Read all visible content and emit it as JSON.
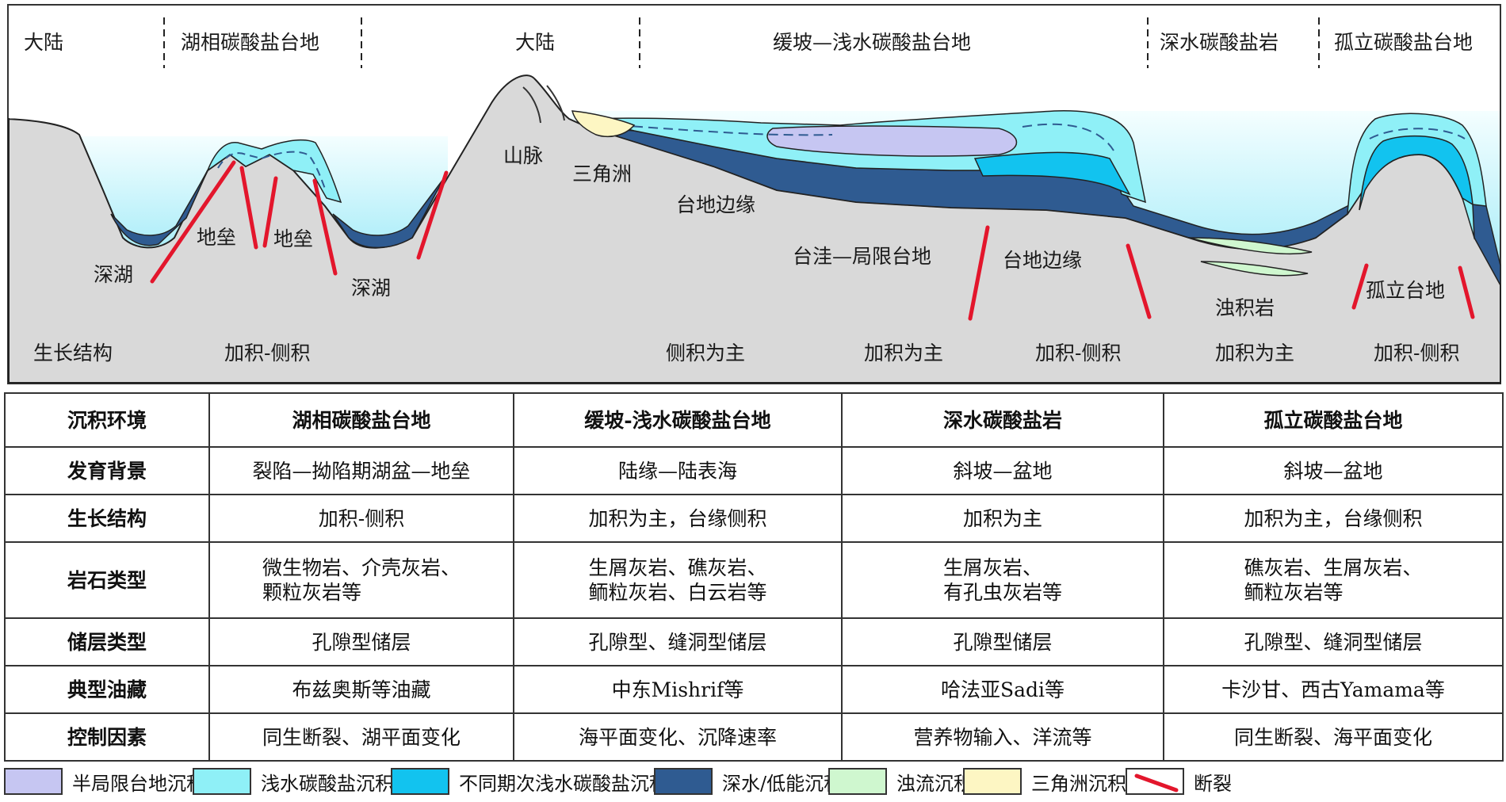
{
  "diagram": {
    "regions": [
      "大陆",
      "湖相碳酸盐台地",
      "大陆",
      "缓坡—浅水碳酸盐台地",
      "深水碳酸盐岩",
      "孤立碳酸盐台地"
    ],
    "labels": {
      "deep_lake_left": "深湖",
      "horst_1": "地垒",
      "horst_2": "地垒",
      "deep_lake_right": "深湖",
      "mountain": "山脉",
      "delta": "三角洲",
      "platform_margin_1": "台地边缘",
      "restricted_platform": "台洼—局限台地",
      "platform_margin_2": "台地边缘",
      "turbidite": "浊积岩",
      "isolated_platform": "孤立台地"
    },
    "growth": {
      "title": "生长结构",
      "items": [
        "加积-侧积",
        "侧积为主",
        "加积为主",
        "加积-侧积",
        "加积为主",
        "加积-侧积"
      ]
    },
    "colors": {
      "land": "#d9d9d9",
      "water_light": "#e8fbff",
      "water_mid": "#9fe9f7",
      "semi_restricted": "#c6c6f2",
      "shallow_carbonate": "#8ff0f7",
      "multi_shallow": "#12c3ef",
      "deep_low_energy": "#2f5b91",
      "turbidite": "#cff7cf",
      "delta": "#fdf6c3",
      "fault": "#e3162c"
    }
  },
  "table": {
    "header": [
      "沉积环境",
      "湖相碳酸盐台地",
      "缓坡-浅水碳酸盐台地",
      "深水碳酸盐岩",
      "孤立碳酸盐台地"
    ],
    "rows": [
      {
        "label": "发育背景",
        "cells": [
          [
            "裂陷—拗陷期湖盆—地垒"
          ],
          [
            "陆缘—陆表海"
          ],
          [
            "斜坡—盆地"
          ],
          [
            "斜坡—盆地"
          ]
        ]
      },
      {
        "label": "生长结构",
        "cells": [
          [
            "加积-侧积"
          ],
          [
            "加积为主，台缘侧积"
          ],
          [
            "加积为主"
          ],
          [
            "加积为主，台缘侧积"
          ]
        ]
      },
      {
        "label": "岩石类型",
        "cells": [
          [
            "微生物岩、介壳灰岩、",
            "颗粒灰岩等"
          ],
          [
            "生屑灰岩、礁灰岩、",
            "鲕粒灰岩、白云岩等"
          ],
          [
            "生屑灰岩、",
            "有孔虫灰岩等"
          ],
          [
            "礁灰岩、生屑灰岩、",
            "鲕粒灰岩等"
          ]
        ]
      },
      {
        "label": "储层类型",
        "cells": [
          [
            "孔隙型储层"
          ],
          [
            "孔隙型、缝洞型储层"
          ],
          [
            "孔隙型储层"
          ],
          [
            "孔隙型、缝洞型储层"
          ]
        ]
      },
      {
        "label": "典型油藏",
        "cells": [
          [
            "布兹奥斯等油藏"
          ],
          [
            "中东Mishrif等"
          ],
          [
            "哈法亚Sadi等"
          ],
          [
            "卡沙甘、西古Yamama等"
          ]
        ]
      },
      {
        "label": "控制因素",
        "cells": [
          [
            "同生断裂、湖平面变化"
          ],
          [
            "海平面变化、沉降速率"
          ],
          [
            "营养物输入、洋流等"
          ],
          [
            "同生断裂、海平面变化"
          ]
        ]
      }
    ]
  },
  "legend": [
    {
      "label": "半局限台地沉积",
      "color": "#c6c6f2"
    },
    {
      "label": "浅水碳酸盐沉积",
      "color": "#8ff0f7"
    },
    {
      "label": "不同期次浅水碳酸盐沉积",
      "color": "#12c3ef"
    },
    {
      "label": "深水/低能沉积",
      "color": "#2f5b91"
    },
    {
      "label": "浊流沉积",
      "color": "#cff7cf"
    },
    {
      "label": "三角洲沉积",
      "color": "#fdf6c3"
    },
    {
      "label": "断裂",
      "color": "#e3162c"
    }
  ]
}
